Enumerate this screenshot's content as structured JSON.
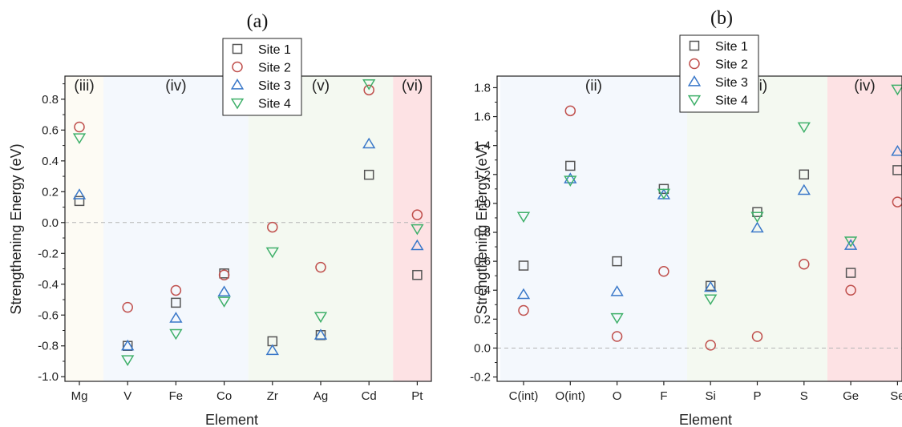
{
  "chart_data": [
    {
      "type": "scatter",
      "panel_label": "(a)",
      "xlabel": "Element",
      "ylabel": "Strengthening Energy (eV)",
      "categories": [
        "Mg",
        "V",
        "Fe",
        "Co",
        "Zr",
        "Ag",
        "Cd",
        "Pt"
      ],
      "ylim": [
        -1.03,
        0.95
      ],
      "yticks": [
        "0.8",
        "0.6",
        "0.4",
        "0.2",
        "0.0",
        "-0.2",
        "-0.4",
        "-0.6",
        "-0.8",
        "-1.0"
      ],
      "reference_line": 0,
      "regions": [
        {
          "label": "(iii)",
          "from": -0.5,
          "to": 0.5,
          "color": "#fdfbf4"
        },
        {
          "label": "(iv)",
          "from": 0.5,
          "to": 3.5,
          "color": "#f4f8fd"
        },
        {
          "label": "(v)",
          "from": 3.5,
          "to": 6.5,
          "color": "#f4f9f1"
        },
        {
          "label": "(vi)",
          "from": 6.5,
          "to": 7.5,
          "color": "#fde2e4"
        }
      ],
      "series": [
        {
          "name": "Site 1",
          "marker": "square",
          "color": "#555555",
          "values": [
            0.14,
            -0.8,
            -0.52,
            -0.33,
            -0.77,
            -0.73,
            0.31,
            -0.34
          ]
        },
        {
          "name": "Site 2",
          "marker": "circle",
          "color": "#c0504d",
          "values": [
            0.62,
            -0.55,
            -0.44,
            -0.34,
            -0.03,
            -0.29,
            0.86,
            0.05
          ]
        },
        {
          "name": "Site 3",
          "marker": "triangle-up",
          "color": "#3a78c9",
          "values": [
            0.18,
            -0.8,
            -0.62,
            -0.45,
            -0.83,
            -0.73,
            0.51,
            -0.15
          ]
        },
        {
          "name": "Site 4",
          "marker": "triangle-down",
          "color": "#3fb06a",
          "values": [
            0.55,
            -0.89,
            -0.72,
            -0.51,
            -0.19,
            -0.61,
            0.9,
            -0.04
          ]
        }
      ]
    },
    {
      "type": "scatter",
      "panel_label": "(b)",
      "xlabel": "Element",
      "ylabel": "Strengthening Energy (eV)",
      "categories": [
        "C(int)",
        "O(int)",
        "O",
        "F",
        "Si",
        "P",
        "S",
        "Ge",
        "Se"
      ],
      "ylim": [
        -0.23,
        1.88
      ],
      "yticks": [
        "1.8",
        "1.6",
        "1.4",
        "1.2",
        "1.0",
        "0.8",
        "0.6",
        "0.4",
        "0.2",
        "0.0",
        "-0.2"
      ],
      "reference_line": 0,
      "regions": [
        {
          "label": "(ii)",
          "from": -0.5,
          "to": 3.5,
          "color": "#f4f8fd"
        },
        {
          "label": "(iii)",
          "from": 3.5,
          "to": 6.5,
          "color": "#f4f9f1"
        },
        {
          "label": "(iv)",
          "from": 6.5,
          "to": 8.5,
          "color": "#fde2e4"
        }
      ],
      "series": [
        {
          "name": "Site 1",
          "marker": "square",
          "color": "#555555",
          "values": [
            0.57,
            1.26,
            0.6,
            1.1,
            0.43,
            0.94,
            1.2,
            0.52,
            1.23
          ]
        },
        {
          "name": "Site 2",
          "marker": "circle",
          "color": "#c0504d",
          "values": [
            0.26,
            1.64,
            0.08,
            0.53,
            0.02,
            0.08,
            0.58,
            0.4,
            1.01
          ]
        },
        {
          "name": "Site 3",
          "marker": "triangle-up",
          "color": "#3a78c9",
          "values": [
            0.37,
            1.17,
            0.39,
            1.06,
            0.42,
            0.83,
            1.09,
            0.71,
            1.36
          ]
        },
        {
          "name": "Site 4",
          "marker": "triangle-down",
          "color": "#3fb06a",
          "values": [
            0.91,
            1.16,
            0.21,
            1.07,
            0.34,
            0.91,
            1.53,
            0.74,
            1.79
          ]
        }
      ]
    }
  ],
  "legend": [
    "Site 1",
    "Site 2",
    "Site 3",
    "Site 4"
  ]
}
